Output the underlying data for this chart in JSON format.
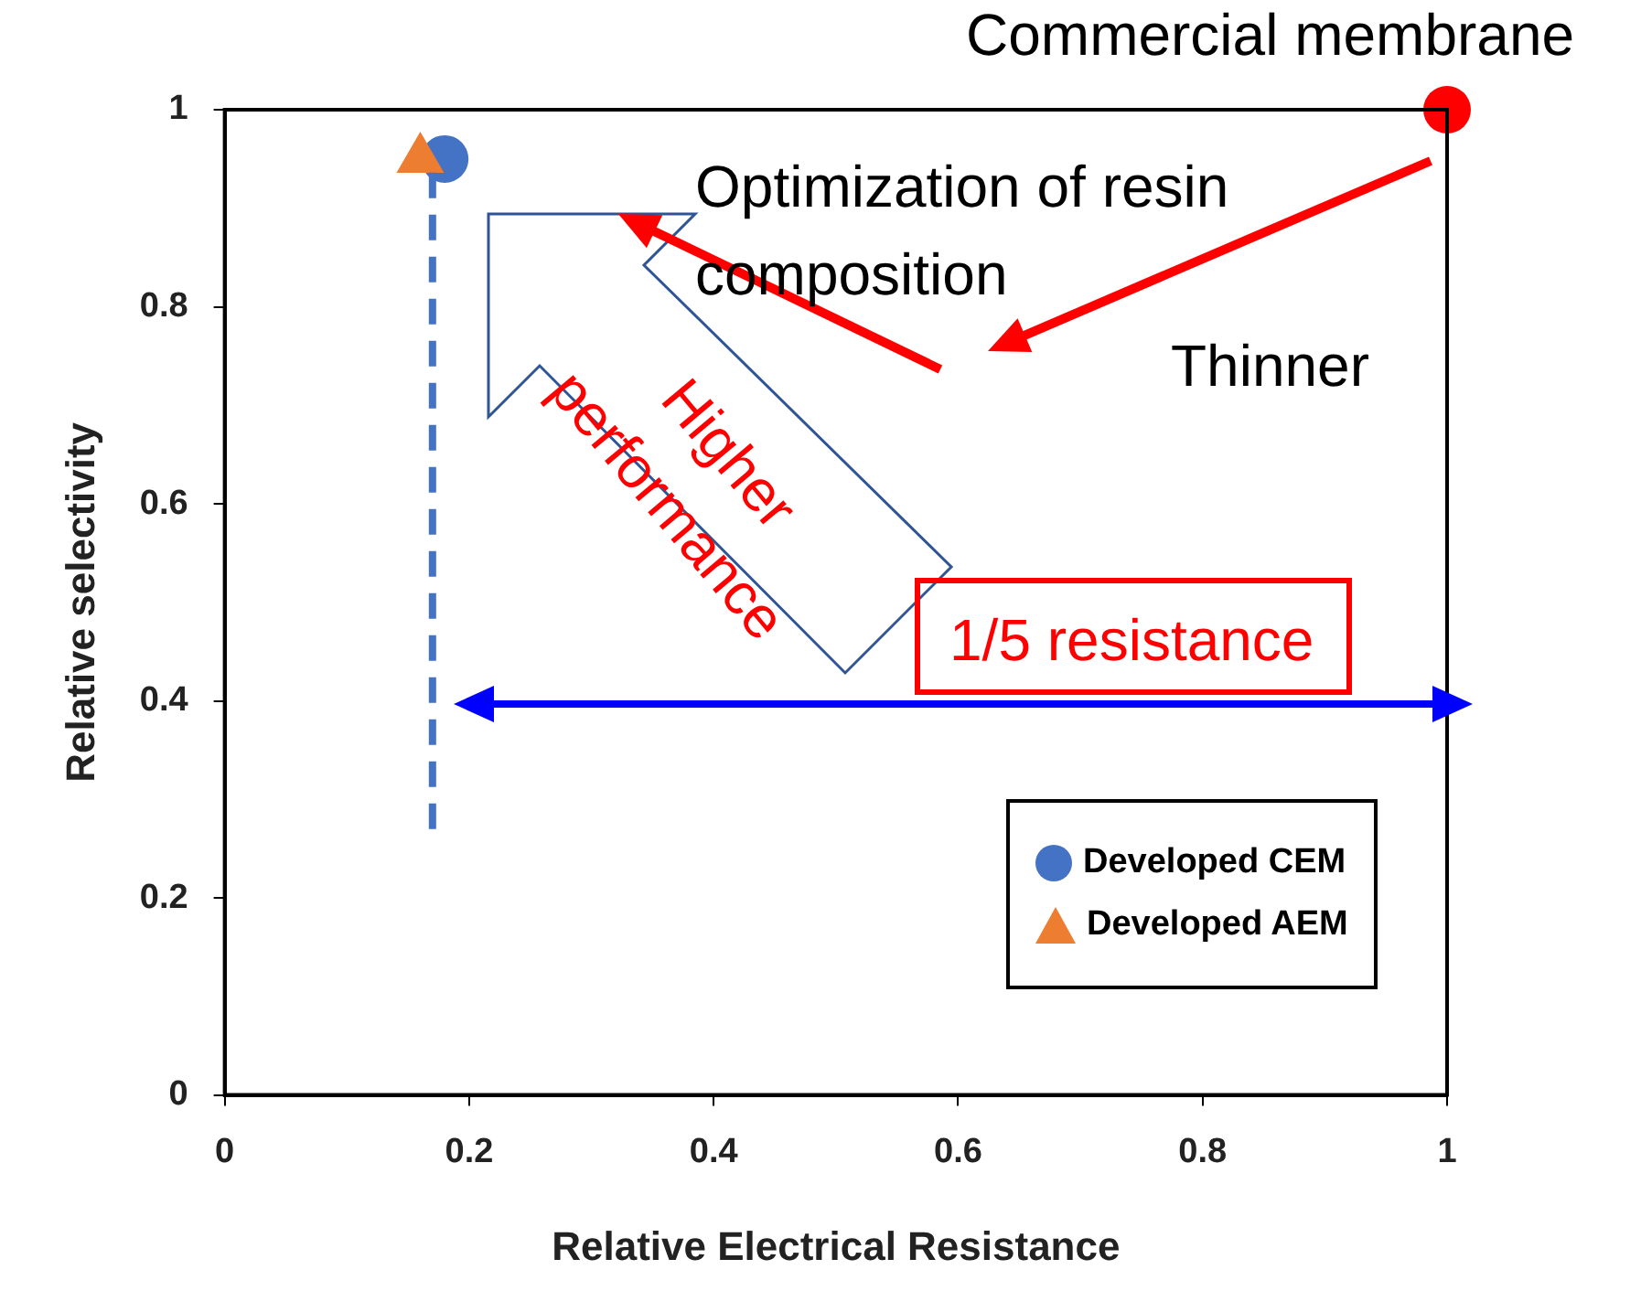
{
  "chart_data": {
    "type": "scatter",
    "xlabel": "Relative Electrical Resistance",
    "ylabel": "Relative selectivity",
    "xlim": [
      0,
      1
    ],
    "ylim": [
      0,
      1
    ],
    "xticks": [
      0,
      0.2,
      0.4,
      0.6,
      0.8,
      1
    ],
    "yticks": [
      0,
      0.2,
      0.4,
      0.6,
      0.8,
      1
    ],
    "grid": false,
    "legend": "bottom right",
    "series": [
      {
        "name": "Developed CEM",
        "color": "#4472c4",
        "marker": "circle",
        "x": [
          0.18
        ],
        "values": [
          0.95
        ]
      },
      {
        "name": "Developed AEM",
        "color": "#ed7d31",
        "marker": "triangle",
        "x": [
          0.16
        ],
        "values": [
          0.95
        ]
      },
      {
        "color": "#ff0000",
        "marker": "circle",
        "x": [
          1
        ],
        "values": [
          1
        ]
      },
      {
        "type": "line",
        "color": "#4472c4",
        "marker": "none",
        "line_style": "dashed",
        "x": [
          0.17,
          0.17
        ],
        "values": [
          0.27,
          0.94
        ]
      }
    ],
    "annotations": [
      {
        "text": "Commercial membrane",
        "x": 1,
        "y": 1
      },
      "Optimization of resin composition",
      "Thinner",
      "Higher performance",
      "1/5 resistance"
    ]
  }
}
